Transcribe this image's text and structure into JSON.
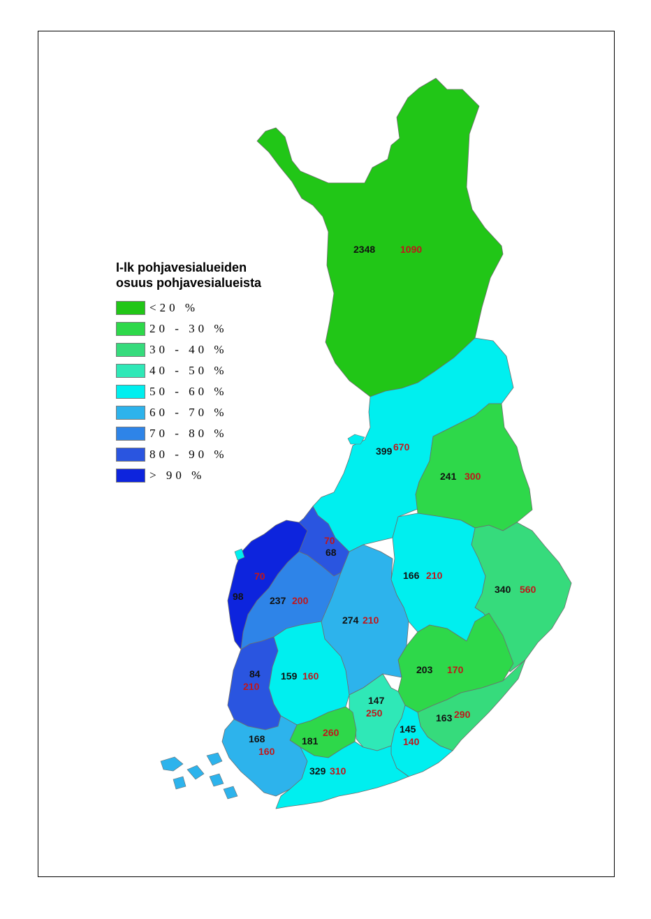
{
  "legend": {
    "title_line1": "I-lk pohjavesialueiden",
    "title_line2": "osuus pohjavesialueista",
    "items": [
      {
        "label": "<20 %",
        "color": "#21c617"
      },
      {
        "label": "20 - 30 %",
        "color": "#2ed84a"
      },
      {
        "label": "30 - 40 %",
        "color": "#36db7c"
      },
      {
        "label": "40 - 50 %",
        "color": "#2fe8b7"
      },
      {
        "label": "50 - 60 %",
        "color": "#00efef"
      },
      {
        "label": "60 - 70 %",
        "color": "#2db3ec"
      },
      {
        "label": "70 - 80 %",
        "color": "#2e84e8"
      },
      {
        "label": "80 - 90 %",
        "color": "#2a55e0"
      },
      {
        "label": "> 90 %",
        "color": "#0d24dd"
      }
    ]
  },
  "regions": [
    {
      "name": "lapland",
      "black": "2348",
      "red": "1090",
      "class": "<20 %"
    },
    {
      "name": "northern-ostrobothnia",
      "black": "399",
      "red": "670",
      "class": "50 - 60 %"
    },
    {
      "name": "kainuu",
      "black": "241",
      "red": "300",
      "class": "20 - 30 %"
    },
    {
      "name": "central-ostrobothnia",
      "black": "68",
      "red": "70",
      "class": "80 - 90 %"
    },
    {
      "name": "ostrobothnia",
      "black": "98",
      "red": "70",
      "class": "> 90 %"
    },
    {
      "name": "south-ostrobothnia",
      "black": "237",
      "red": "200",
      "class": "70 - 80 %"
    },
    {
      "name": "central-finland",
      "black": "274",
      "red": "210",
      "class": "60 - 70 %"
    },
    {
      "name": "northern-savonia",
      "black": "166",
      "red": "210",
      "class": "50 - 60 %"
    },
    {
      "name": "north-karelia",
      "black": "340",
      "red": "560",
      "class": "30 - 40 %"
    },
    {
      "name": "southern-savonia",
      "black": "203",
      "red": "170",
      "class": "20 - 30 %"
    },
    {
      "name": "satakunta",
      "black": "84",
      "red": "210",
      "class": "70 - 80 %"
    },
    {
      "name": "pirkanmaa",
      "black": "159",
      "red": "160",
      "class": "50 - 60 %"
    },
    {
      "name": "paijat-hame",
      "black": "147",
      "red": "250",
      "class": "40 - 50 %"
    },
    {
      "name": "south-karelia",
      "black": "163",
      "red": "290",
      "class": "20 - 30 %"
    },
    {
      "name": "kymenlaakso",
      "black": "145",
      "red": "140",
      "class": "50 - 60 %"
    },
    {
      "name": "kanta-hame",
      "black": "181",
      "red": "260",
      "class": "20 - 30 %"
    },
    {
      "name": "southwest-finland",
      "black": "168",
      "red": "160",
      "class": "60 - 70 %"
    },
    {
      "name": "uusimaa",
      "black": "329",
      "red": "310",
      "class": "50 - 60 %"
    }
  ]
}
